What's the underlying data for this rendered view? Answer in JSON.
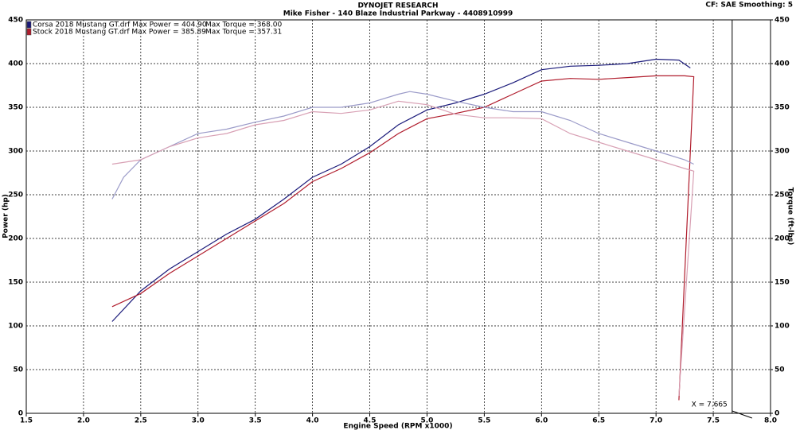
{
  "chart_data": {
    "type": "line",
    "title": "DYNOJET RESEARCH",
    "subtitle": "Mike Fisher - 140 Blaze Industrial Parkway - 4408910999",
    "settings_text": "CF: SAE  Smoothing: 5",
    "x_label": "Engine Speed (RPM x1000)",
    "y_label": "Power (hp)",
    "y2_label": "Torque (ft-lbs)",
    "legend": [
      {
        "text": "Corsa 2018 Mustang GT.drf Max Power = 404.90",
        "torque_text": "Max Torque = 368.00",
        "color": "#1a1a7a"
      },
      {
        "text": "Stock 2018 Mustang GT.drf Max Power = 385.89",
        "torque_text": "Max Torque = 357.31",
        "color": "#b01c2c"
      }
    ],
    "cursor_x": 7.665,
    "annotation": "X = 7.665",
    "xlim": [
      1.5,
      8.0
    ],
    "xticks": [
      1.5,
      {
        "value": 2,
        "label": "2.0"
      },
      2.5,
      {
        "value": 3,
        "label": "3.0"
      },
      3.5,
      {
        "value": 4,
        "label": "4.0"
      },
      4.5,
      {
        "value": 5,
        "label": "5.0"
      },
      5.5,
      {
        "value": 6,
        "label": "6.0"
      },
      6.5,
      {
        "value": 7,
        "label": "7.0"
      },
      7.5,
      {
        "value": 8,
        "label": "8.0"
      }
    ],
    "ylim": [
      0,
      450
    ],
    "yticks": [
      0,
      50,
      100,
      150,
      200,
      250,
      300,
      350,
      400,
      450
    ],
    "y2lim": [
      0,
      450
    ],
    "y2ticks": [
      0,
      50,
      100,
      150,
      200,
      250,
      300,
      350,
      400,
      450
    ],
    "grid": true,
    "series": [
      {
        "color": "#1a1a7a",
        "x": [
          2.25,
          2.5,
          2.75,
          3.0,
          3.25,
          3.5,
          3.75,
          4.0,
          4.25,
          4.5,
          4.75,
          5.0,
          5.25,
          5.5,
          5.75,
          6.0,
          6.25,
          6.5,
          6.75,
          7.0,
          7.2,
          7.3
        ],
        "values": [
          105,
          140,
          165,
          185,
          205,
          222,
          245,
          270,
          285,
          305,
          330,
          347,
          355,
          365,
          378,
          393,
          397,
          398,
          400,
          405,
          404,
          395
        ]
      },
      {
        "color": "#b01c2c",
        "x": [
          2.25,
          2.5,
          2.75,
          3.0,
          3.25,
          3.5,
          3.75,
          4.0,
          4.25,
          4.5,
          4.75,
          5.0,
          5.25,
          5.5,
          5.75,
          6.0,
          6.25,
          6.5,
          6.75,
          7.0,
          7.25,
          7.33,
          7.2
        ],
        "values": [
          122,
          137,
          160,
          180,
          200,
          220,
          240,
          265,
          280,
          298,
          320,
          337,
          343,
          350,
          365,
          380,
          383,
          382,
          384,
          386,
          386,
          385,
          15
        ]
      },
      {
        "color": "#9a9ac8",
        "axis": "y2",
        "x": [
          2.25,
          2.35,
          2.5,
          2.75,
          3.0,
          3.25,
          3.5,
          3.75,
          4.0,
          4.25,
          4.5,
          4.75,
          4.85,
          5.0,
          5.25,
          5.5,
          5.75,
          6.0,
          6.25,
          6.5,
          6.75,
          7.0,
          7.25,
          7.33
        ],
        "values": [
          245,
          270,
          290,
          305,
          320,
          325,
          333,
          340,
          350,
          350,
          355,
          365,
          368,
          365,
          357,
          350,
          345,
          345,
          335,
          320,
          310,
          300,
          290,
          285
        ]
      },
      {
        "color": "#d8a0b4",
        "axis": "y2",
        "x": [
          2.25,
          2.5,
          2.75,
          3.0,
          3.25,
          3.5,
          3.75,
          4.0,
          4.25,
          4.5,
          4.75,
          5.0,
          5.25,
          5.5,
          5.75,
          6.0,
          6.25,
          6.5,
          6.75,
          7.0,
          7.25,
          7.33,
          7.2
        ],
        "values": [
          285,
          290,
          305,
          315,
          320,
          330,
          335,
          345,
          343,
          347,
          357,
          353,
          342,
          338,
          338,
          337,
          320,
          310,
          300,
          290,
          280,
          277,
          20
        ]
      }
    ]
  }
}
